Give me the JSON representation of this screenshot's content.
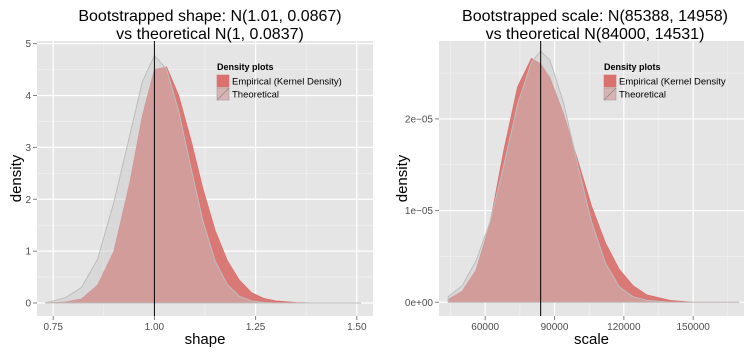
{
  "chart_data": [
    {
      "type": "area",
      "title_line1": "Bootstrapped shape: N(1.01, 0.0867)",
      "title_line2": "vs theoretical N(1, 0.0837)",
      "xlabel": "shape",
      "ylabel": "density",
      "xlim": [
        0.71,
        1.54
      ],
      "ylim": [
        -0.25,
        5.05
      ],
      "x_ticks": [
        {
          "value": 0.75,
          "label": "0.75"
        },
        {
          "value": 1.0,
          "label": "1.00"
        },
        {
          "value": 1.25,
          "label": "1.25"
        },
        {
          "value": 1.5,
          "label": "1.50"
        }
      ],
      "y_ticks": [
        {
          "value": 0,
          "label": "0"
        },
        {
          "value": 1,
          "label": "1"
        },
        {
          "value": 2,
          "label": "2"
        },
        {
          "value": 3,
          "label": "3"
        },
        {
          "value": 4,
          "label": "4"
        },
        {
          "value": 5,
          "label": "5"
        }
      ],
      "vline": 1.0,
      "legend": {
        "title": "Density plots",
        "entries": [
          "Empirical (Kernel Density)",
          "Theoretical"
        ],
        "placement": "top-right"
      },
      "series": [
        {
          "name": "Empirical (Kernel Density)",
          "x": [
            0.73,
            0.78,
            0.82,
            0.86,
            0.9,
            0.94,
            0.97,
            1.0,
            1.03,
            1.06,
            1.09,
            1.12,
            1.15,
            1.18,
            1.21,
            1.24,
            1.27,
            1.3,
            1.35,
            1.4,
            1.45,
            1.51
          ],
          "y": [
            0.0,
            0.02,
            0.08,
            0.35,
            1.0,
            2.35,
            3.6,
            4.5,
            4.55,
            4.0,
            3.15,
            2.2,
            1.4,
            0.82,
            0.44,
            0.2,
            0.09,
            0.04,
            0.01,
            0.0,
            0.0,
            0.0
          ]
        },
        {
          "name": "Theoretical",
          "x": [
            0.73,
            0.78,
            0.82,
            0.86,
            0.9,
            0.94,
            0.97,
            1.0,
            1.03,
            1.06,
            1.09,
            1.12,
            1.15,
            1.18,
            1.21,
            1.24,
            1.27,
            1.3,
            1.35,
            1.4,
            1.45,
            1.51
          ],
          "y": [
            0.0,
            0.1,
            0.3,
            0.85,
            1.95,
            3.26,
            4.26,
            4.77,
            4.51,
            3.7,
            2.62,
            1.58,
            0.81,
            0.36,
            0.13,
            0.04,
            0.01,
            0.0,
            0.0,
            0.0,
            0.0,
            0.0
          ]
        }
      ]
    },
    {
      "type": "area",
      "title_line1": "Bootstrapped scale: N(85388, 14958)",
      "title_line2": "vs theoretical N(84000, 14531)",
      "xlabel": "scale",
      "ylabel": "density",
      "xlim": [
        40000,
        172000
      ],
      "ylim": [
        -1.5e-06,
        2.85e-05
      ],
      "x_ticks": [
        {
          "value": 60000,
          "label": "60000"
        },
        {
          "value": 90000,
          "label": "90000"
        },
        {
          "value": 120000,
          "label": "120000"
        },
        {
          "value": 150000,
          "label": "150000"
        }
      ],
      "y_ticks": [
        {
          "value": 0,
          "label": "0e+00"
        },
        {
          "value": 1e-05,
          "label": "1e−05"
        },
        {
          "value": 2e-05,
          "label": "2e−05"
        }
      ],
      "vline": 84000,
      "legend": {
        "title": "Density plots",
        "entries": [
          "Empirical (Kernel Density",
          "Theoretical"
        ],
        "placement": "top-right"
      },
      "series": [
        {
          "name": "Empirical (Kernel Density)",
          "x": [
            44000,
            50000,
            56000,
            62000,
            68000,
            74000,
            80000,
            84000,
            88000,
            94000,
            100000,
            106000,
            112000,
            118000,
            124000,
            130000,
            140000,
            150000,
            160000,
            170000
          ],
          "y": [
            3e-07,
            1.2e-06,
            3.5e-06,
            8.5e-06,
            1.65e-05,
            2.35e-05,
            2.66e-05,
            2.6e-05,
            2.45e-05,
            2.05e-05,
            1.55e-05,
            1.05e-05,
            6.5e-06,
            3.6e-06,
            1.8e-06,
            8e-07,
            2e-07,
            0.0,
            0.0,
            0.0
          ]
        },
        {
          "name": "Theoretical",
          "x": [
            44000,
            50000,
            56000,
            62000,
            68000,
            74000,
            80000,
            84000,
            88000,
            94000,
            100000,
            106000,
            112000,
            118000,
            124000,
            130000,
            140000,
            150000,
            160000,
            170000
          ],
          "y": [
            6e-07,
            1.8e-06,
            4.5e-06,
            8.7e-06,
            1.49e-05,
            2.16e-05,
            2.62e-05,
            2.74e-05,
            2.64e-05,
            2.17e-05,
            1.5e-05,
            8.8e-06,
            4.3e-06,
            1.7e-06,
            6e-07,
            2e-07,
            0.0,
            0.0,
            0.0,
            0.0
          ]
        }
      ]
    }
  ]
}
